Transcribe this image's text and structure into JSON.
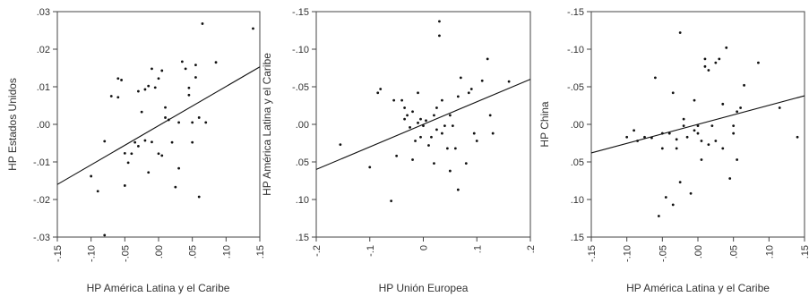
{
  "chart_data": [
    {
      "type": "scatter",
      "xlabel": "HP América Latina y el Caribe",
      "ylabel": "HP Estados Unidos",
      "xlim": [
        -0.15,
        0.15
      ],
      "ylim": [
        -0.03,
        0.03
      ],
      "y_inverted": false,
      "x_ticks": [
        -0.15,
        -0.1,
        -0.05,
        0.0,
        0.05,
        0.1,
        0.15
      ],
      "x_tick_labels": [
        "-.15",
        "-.10",
        "-.05",
        ".00",
        ".05",
        ".10",
        ".15"
      ],
      "y_ticks": [
        0.03,
        0.02,
        0.01,
        0.0,
        -0.01,
        -0.02,
        -0.03
      ],
      "y_tick_labels": [
        ".03",
        ".02",
        ".01",
        ".00",
        "-.01",
        "-.02",
        "-.03"
      ],
      "fit_line": {
        "x": [
          -0.15,
          0.15
        ],
        "y": [
          -0.016,
          0.0153
        ]
      },
      "points": {
        "x": [
          -0.1,
          -0.08,
          -0.09,
          -0.08,
          -0.07,
          -0.06,
          -0.06,
          -0.055,
          -0.05,
          -0.045,
          -0.05,
          -0.04,
          -0.035,
          -0.03,
          -0.03,
          -0.025,
          -0.02,
          -0.02,
          -0.015,
          -0.01,
          -0.015,
          -0.01,
          0.0,
          -0.005,
          0.0,
          0.005,
          0.005,
          0.01,
          0.01,
          0.015,
          0.02,
          0.025,
          0.03,
          0.03,
          0.035,
          0.04,
          0.045,
          0.045,
          0.05,
          0.05,
          0.055,
          0.055,
          0.06,
          0.06,
          0.065,
          0.07,
          0.085,
          0.14
        ],
        "y": [
          -0.0138,
          -0.0045,
          -0.0178,
          -0.0295,
          0.0075,
          0.0072,
          0.0122,
          0.0118,
          -0.0077,
          -0.0102,
          -0.0163,
          -0.0078,
          -0.0048,
          0.0088,
          -0.0058,
          0.0033,
          0.0093,
          -0.0043,
          -0.0128,
          0.0148,
          0.0102,
          -0.0047,
          0.0122,
          0.0098,
          -0.0078,
          0.0143,
          -0.0083,
          0.0045,
          0.0018,
          0.0012,
          -0.0048,
          -0.0167,
          0.0005,
          -0.0117,
          0.0167,
          0.0148,
          0.0078,
          0.0097,
          0.0005,
          -0.0048,
          0.0125,
          0.0158,
          0.0018,
          -0.0193,
          0.0268,
          0.0005,
          0.0165,
          0.0255
        ]
      }
    },
    {
      "type": "scatter",
      "xlabel": "HP Unión Europea",
      "ylabel": "HP América Latina y el Caribe",
      "xlim": [
        -0.2,
        0.2
      ],
      "ylim": [
        -0.15,
        0.15
      ],
      "y_inverted": true,
      "x_ticks": [
        -0.2,
        -0.1,
        0.0,
        0.1,
        0.2
      ],
      "x_tick_labels": [
        "-.2",
        "-.1",
        "0",
        ".1",
        ".2"
      ],
      "y_ticks": [
        -0.15,
        -0.1,
        -0.05,
        0.0,
        0.05,
        0.1,
        0.15
      ],
      "y_tick_labels": [
        "-.15",
        "-.10",
        "-.05",
        ".00",
        ".05",
        ".10",
        ".15"
      ],
      "fit_line": {
        "x": [
          -0.2,
          0.2
        ],
        "y": [
          0.06,
          -0.06
        ]
      },
      "points": {
        "x": [
          -0.155,
          -0.1,
          -0.085,
          -0.08,
          -0.06,
          -0.055,
          -0.05,
          -0.04,
          -0.035,
          -0.035,
          -0.03,
          -0.025,
          -0.02,
          -0.02,
          -0.015,
          -0.01,
          -0.01,
          -0.005,
          -0.005,
          0.0,
          0.005,
          0.01,
          0.015,
          0.02,
          0.02,
          0.025,
          0.025,
          0.03,
          0.03,
          0.035,
          0.035,
          0.04,
          0.045,
          0.05,
          0.05,
          0.055,
          0.06,
          0.065,
          0.065,
          0.07,
          0.08,
          0.085,
          0.09,
          0.095,
          0.1,
          0.11,
          0.12,
          0.125,
          0.13,
          0.16
        ],
        "y": [
          0.027,
          0.057,
          -0.042,
          -0.047,
          0.102,
          -0.032,
          0.042,
          -0.032,
          -0.007,
          -0.022,
          -0.012,
          0.004,
          -0.017,
          0.047,
          0.022,
          -0.002,
          -0.042,
          -0.007,
          0.017,
          0.002,
          -0.005,
          0.028,
          0.017,
          0.052,
          -0.012,
          -0.022,
          0.007,
          -0.137,
          -0.118,
          -0.032,
          0.012,
          0.002,
          0.032,
          -0.012,
          0.062,
          0.002,
          0.032,
          -0.037,
          0.087,
          -0.062,
          0.052,
          -0.042,
          -0.047,
          0.012,
          0.022,
          -0.058,
          -0.087,
          -0.012,
          0.012,
          -0.057
        ]
      }
    },
    {
      "type": "scatter",
      "xlabel": "HP América Latina y el Caribe",
      "ylabel": "HP China",
      "xlim": [
        -0.15,
        0.15
      ],
      "ylim": [
        -0.15,
        0.15
      ],
      "y_inverted": true,
      "x_ticks": [
        -0.15,
        -0.1,
        -0.05,
        0.0,
        0.05,
        0.1,
        0.15
      ],
      "x_tick_labels": [
        "-.15",
        "-.10",
        "-.05",
        ".00",
        ".05",
        ".10",
        ".15"
      ],
      "y_ticks": [
        -0.15,
        -0.1,
        -0.05,
        0.0,
        0.05,
        0.1,
        0.15
      ],
      "y_tick_labels": [
        "-.15",
        "-.10",
        "-.05",
        ".00",
        ".05",
        ".10",
        ".15"
      ],
      "fit_line": {
        "x": [
          -0.15,
          0.15
        ],
        "y": [
          0.038,
          -0.038
        ]
      },
      "points": {
        "x": [
          -0.1,
          -0.09,
          -0.085,
          -0.075,
          -0.065,
          -0.06,
          -0.055,
          -0.05,
          -0.05,
          -0.045,
          -0.04,
          -0.035,
          -0.035,
          -0.03,
          -0.03,
          -0.025,
          -0.025,
          -0.02,
          -0.02,
          -0.015,
          -0.01,
          -0.005,
          -0.005,
          0.0,
          0.0,
          0.005,
          0.005,
          0.01,
          0.01,
          0.015,
          0.015,
          0.02,
          0.025,
          0.025,
          0.03,
          0.035,
          0.035,
          0.04,
          0.045,
          0.05,
          0.05,
          0.055,
          0.055,
          0.06,
          0.065,
          0.085,
          0.115,
          0.14
        ],
        "y": [
          0.017,
          0.008,
          0.022,
          0.017,
          0.018,
          -0.062,
          0.122,
          0.012,
          0.032,
          0.097,
          0.012,
          -0.042,
          0.107,
          0.02,
          0.032,
          -0.122,
          0.077,
          0.002,
          -0.007,
          0.017,
          0.092,
          -0.032,
          0.008,
          0.012,
          0.002,
          0.022,
          0.047,
          -0.077,
          -0.087,
          -0.072,
          0.027,
          0.002,
          -0.082,
          0.022,
          -0.087,
          -0.027,
          0.032,
          -0.102,
          0.072,
          0.012,
          0.002,
          -0.017,
          0.047,
          -0.022,
          -0.052,
          -0.082,
          -0.022,
          0.017
        ]
      }
    }
  ]
}
